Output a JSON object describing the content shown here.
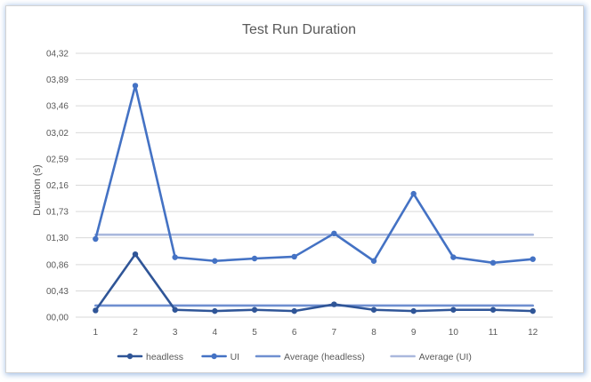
{
  "chart_data": {
    "type": "line",
    "title": "Test Run Duration",
    "xlabel": "",
    "ylabel": "Duration (s)",
    "x": [
      1,
      2,
      3,
      4,
      5,
      6,
      7,
      8,
      9,
      10,
      11,
      12
    ],
    "x_tick_labels": [
      "1",
      "2",
      "3",
      "4",
      "5",
      "6",
      "7",
      "8",
      "9",
      "10",
      "11",
      "12"
    ],
    "y_ticks": [
      0.0,
      0.43,
      0.86,
      1.3,
      1.73,
      2.16,
      2.59,
      3.02,
      3.46,
      3.89,
      4.32
    ],
    "y_tick_labels": [
      "00,00",
      "00,43",
      "00,86",
      "01,30",
      "01,73",
      "02,16",
      "02,59",
      "03,02",
      "03,46",
      "03,89",
      "04,32"
    ],
    "ylim": [
      0,
      4.32
    ],
    "grid": "horizontal",
    "legend": "bottom",
    "series": [
      {
        "name": "headless",
        "color": "#2F5597",
        "markers": true,
        "values": [
          0.11,
          1.03,
          0.12,
          0.1,
          0.12,
          0.1,
          0.21,
          0.12,
          0.1,
          0.12,
          0.12,
          0.1
        ]
      },
      {
        "name": "UI",
        "color": "#4472C4",
        "markers": true,
        "values": [
          1.28,
          3.79,
          0.98,
          0.92,
          0.96,
          0.99,
          1.37,
          0.92,
          2.02,
          0.98,
          0.89,
          0.95
        ]
      },
      {
        "name": "Average (headless)",
        "color": "#6F8FD0",
        "markers": false,
        "values": [
          0.19,
          0.19,
          0.19,
          0.19,
          0.19,
          0.19,
          0.19,
          0.19,
          0.19,
          0.19,
          0.19,
          0.19
        ]
      },
      {
        "name": "Average (UI)",
        "color": "#AAB8DD",
        "markers": false,
        "values": [
          1.35,
          1.35,
          1.35,
          1.35,
          1.35,
          1.35,
          1.35,
          1.35,
          1.35,
          1.35,
          1.35,
          1.35
        ]
      }
    ]
  }
}
